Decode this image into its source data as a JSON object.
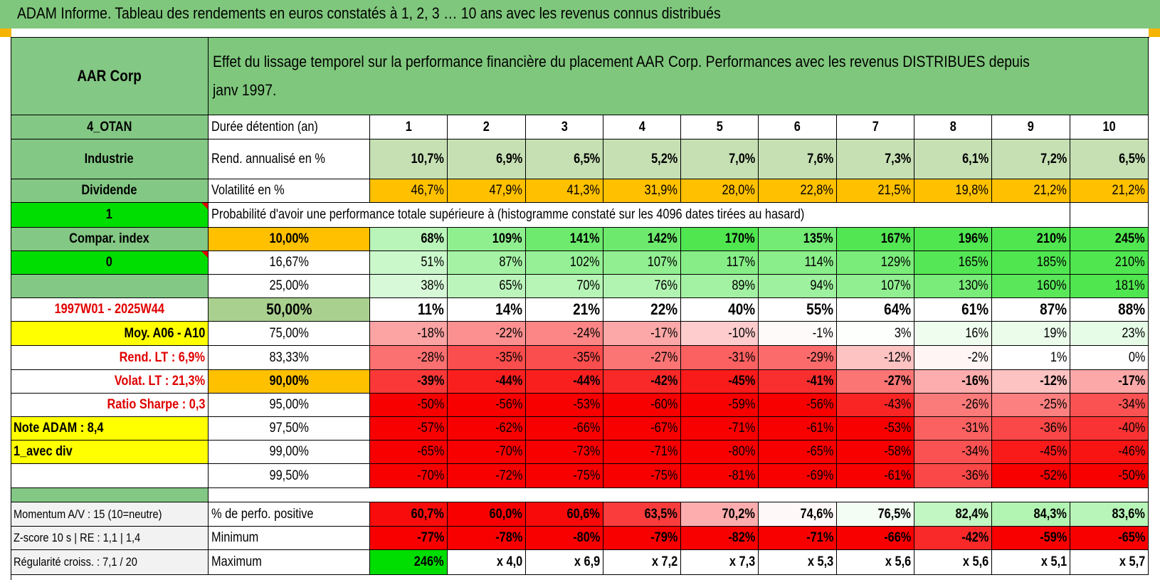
{
  "title": "ADAM Informe. Tableau des rendements en euros constatés à 1, 2, 3 … 10 ans avec les revenus connus distribués",
  "header": {
    "name": "AAR Corp",
    "description": "Effet du lissage temporel sur la performance financière du placement AAR Corp. Performances avec les revenus DISTRIBUES depuis janv 1997."
  },
  "left_labels": [
    "4_OTAN",
    "Industrie",
    "Dividende",
    "1",
    "Compar. index",
    "0",
    "",
    "1997W01 - 2025W44",
    "Moy. A06 - A10",
    "Rend. LT :    6,9%",
    "Volat. LT :    21,3%",
    "Ratio Sharpe :    0,3",
    "Note ADAM : 8,4",
    "1_avec div",
    ""
  ],
  "duration_label": "Durée détention (an)",
  "years": [
    "1",
    "2",
    "3",
    "4",
    "5",
    "6",
    "7",
    "8",
    "9",
    "10"
  ],
  "rend_label": "Rend. annualisé en %",
  "rend": [
    "10,7%",
    "6,9%",
    "6,5%",
    "5,2%",
    "7,0%",
    "7,6%",
    "7,3%",
    "6,1%",
    "7,2%",
    "6,5%"
  ],
  "vol_label": "Volatilité en %",
  "vol": [
    "46,7%",
    "47,9%",
    "41,3%",
    "31,9%",
    "28,0%",
    "22,8%",
    "21,5%",
    "19,8%",
    "21,2%",
    "21,2%"
  ],
  "prob_heading": "Probabilité d'avoir une performance totale supérieure à (histogramme constaté sur les 4096 dates tirées au hasard)",
  "prob_rows": [
    {
      "p": "10,00%",
      "v": [
        "68%",
        "109%",
        "141%",
        "142%",
        "170%",
        "135%",
        "167%",
        "196%",
        "210%",
        "245%"
      ]
    },
    {
      "p": "16,67%",
      "v": [
        "51%",
        "87%",
        "102%",
        "107%",
        "117%",
        "114%",
        "129%",
        "165%",
        "185%",
        "210%"
      ]
    },
    {
      "p": "25,00%",
      "v": [
        "38%",
        "65%",
        "70%",
        "76%",
        "89%",
        "94%",
        "107%",
        "130%",
        "160%",
        "181%"
      ]
    },
    {
      "p": "50,00%",
      "v": [
        "11%",
        "14%",
        "21%",
        "22%",
        "40%",
        "55%",
        "64%",
        "61%",
        "87%",
        "88%"
      ]
    },
    {
      "p": "75,00%",
      "v": [
        "-18%",
        "-22%",
        "-24%",
        "-17%",
        "-10%",
        "-1%",
        "3%",
        "16%",
        "19%",
        "23%"
      ]
    },
    {
      "p": "83,33%",
      "v": [
        "-28%",
        "-35%",
        "-35%",
        "-27%",
        "-31%",
        "-29%",
        "-12%",
        "-2%",
        "1%",
        "0%"
      ]
    },
    {
      "p": "90,00%",
      "v": [
        "-39%",
        "-44%",
        "-44%",
        "-42%",
        "-45%",
        "-41%",
        "-27%",
        "-16%",
        "-12%",
        "-17%"
      ]
    },
    {
      "p": "95,00%",
      "v": [
        "-50%",
        "-56%",
        "-53%",
        "-60%",
        "-59%",
        "-56%",
        "-43%",
        "-26%",
        "-25%",
        "-34%"
      ]
    },
    {
      "p": "97,50%",
      "v": [
        "-57%",
        "-62%",
        "-66%",
        "-67%",
        "-71%",
        "-61%",
        "-53%",
        "-31%",
        "-36%",
        "-40%"
      ]
    },
    {
      "p": "99,00%",
      "v": [
        "-65%",
        "-70%",
        "-73%",
        "-71%",
        "-80%",
        "-65%",
        "-58%",
        "-34%",
        "-45%",
        "-46%"
      ]
    },
    {
      "p": "99,50%",
      "v": [
        "-70%",
        "-72%",
        "-75%",
        "-75%",
        "-81%",
        "-69%",
        "-61%",
        "-36%",
        "-52%",
        "-50%"
      ]
    }
  ],
  "bottom_rows": [
    {
      "left": "Momentum A/V : 15 (10=neutre)",
      "label": "% de perfo. positive",
      "v": [
        "60,7%",
        "60,0%",
        "60,6%",
        "63,5%",
        "70,2%",
        "74,6%",
        "76,5%",
        "82,4%",
        "84,3%",
        "83,6%"
      ]
    },
    {
      "left": "Z-score 10 s | RE : 1,1 | 1,4",
      "label": "Minimum",
      "v": [
        "-77%",
        "-78%",
        "-80%",
        "-79%",
        "-82%",
        "-71%",
        "-66%",
        "-42%",
        "-59%",
        "-65%"
      ]
    },
    {
      "left": "Régularité croiss. : 7,1 / 20",
      "label": "Maximum",
      "v": [
        "246%",
        "x 4,0",
        "x 6,9",
        "x 7,2",
        "x 7,3",
        "x 5,3",
        "x 5,6",
        "x 5,6",
        "x 5,1",
        "x 5,7"
      ]
    }
  ],
  "colors": {
    "header_green": "#7fc77c",
    "label_green": "#83c884",
    "bright_green": "#00dd00",
    "yellow": "#ffff00",
    "orange": "#ffc000",
    "rend_green": "#c6e0b4",
    "median_green": "#a9d08e",
    "red_text": "#e00000"
  }
}
